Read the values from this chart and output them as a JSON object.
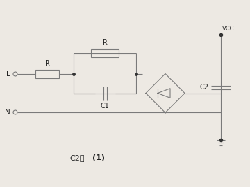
{
  "bg_color": "#ede9e3",
  "line_color": "#7a7a7a",
  "text_color": "#222222",
  "line_width": 0.8,
  "dot_color": "#333333",
  "label_L": "L",
  "label_N": "N",
  "label_R1": "R",
  "label_R2": "R",
  "label_C1": "C1",
  "label_C2": "C2",
  "label_VCC": "VCC",
  "caption_normal": "C2：",
  "caption_bold": "(1)"
}
